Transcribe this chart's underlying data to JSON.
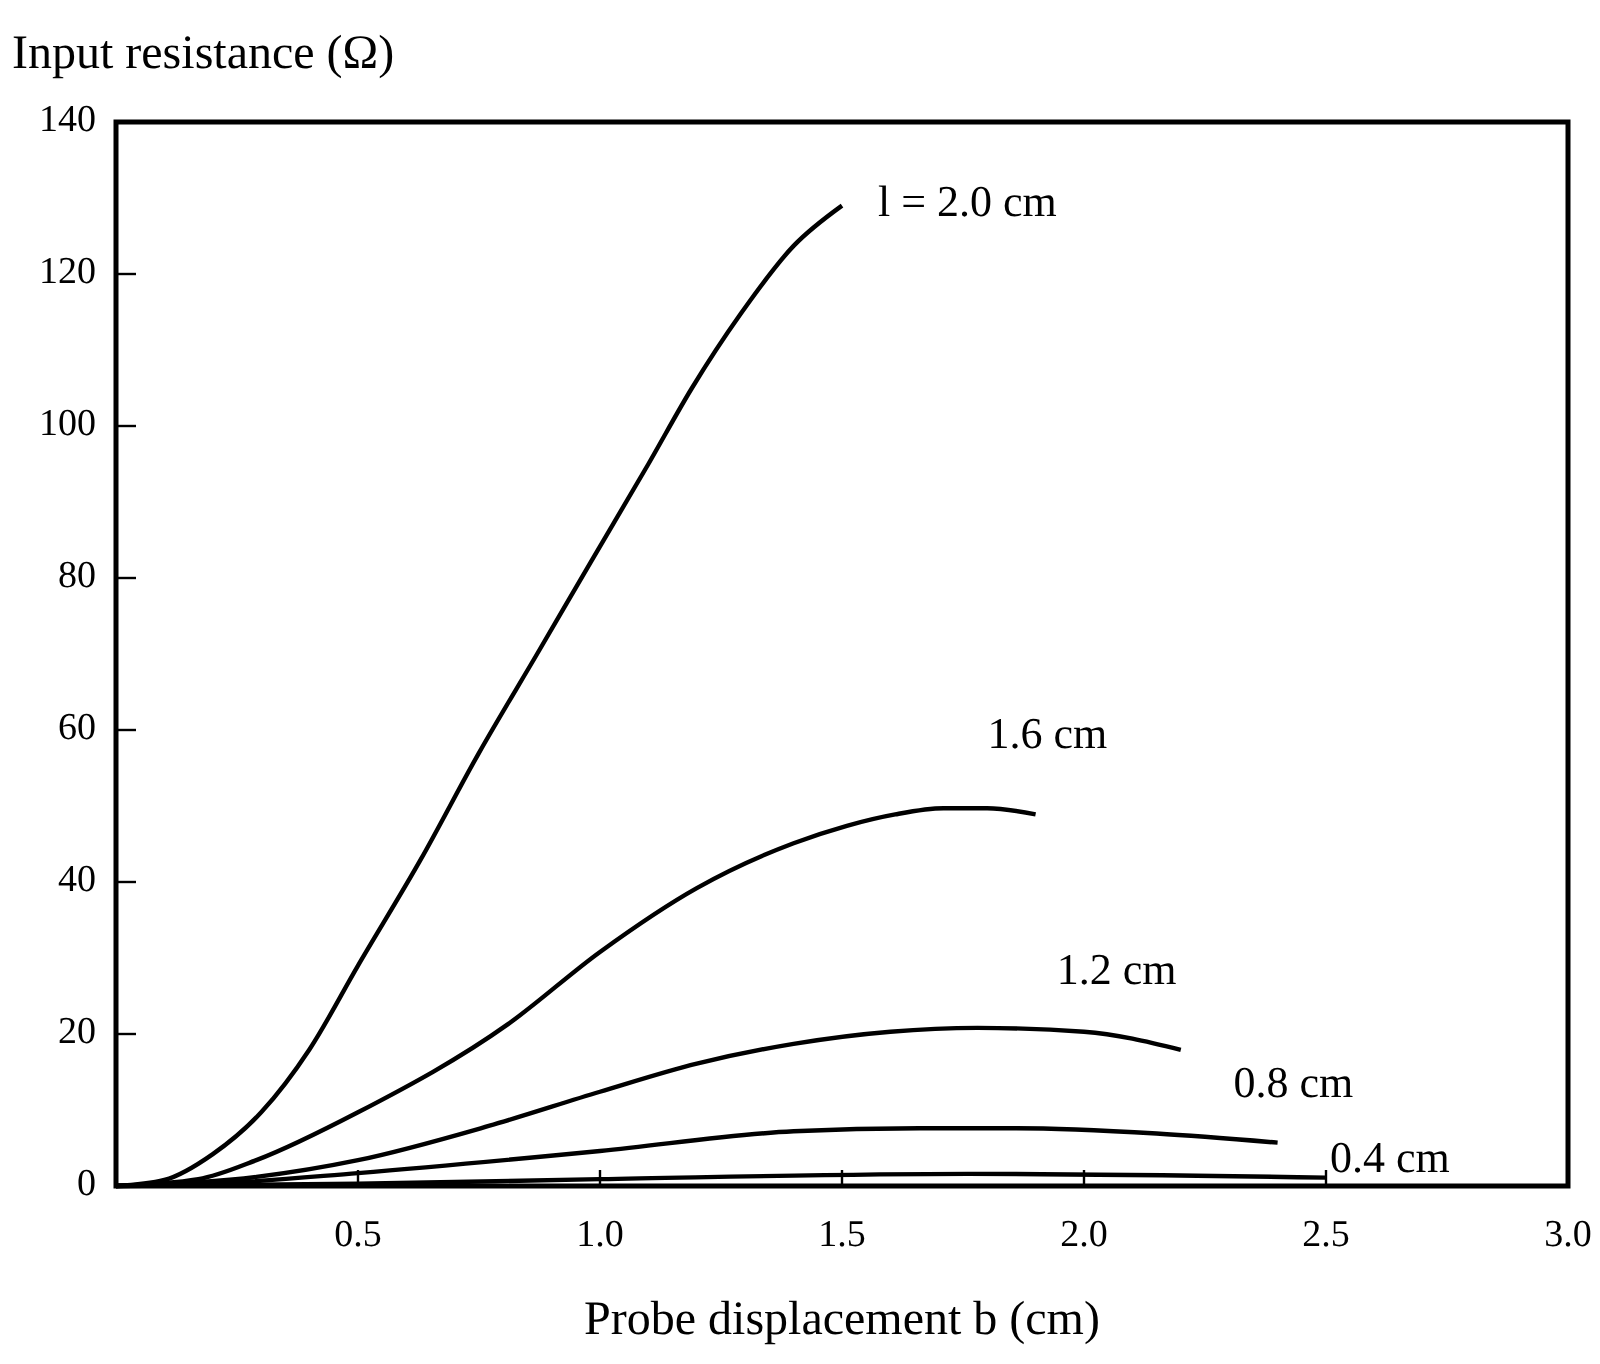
{
  "chart_data": {
    "type": "line",
    "ylabel": "Input resistance (Ω)",
    "xlabel": "Probe displacement b (cm)",
    "xlim": [
      0,
      3.0
    ],
    "xticks": [
      0.5,
      {
        "value": 1,
        "label": "1.0"
      },
      1.5,
      {
        "value": 2,
        "label": "2.0"
      },
      2.5,
      {
        "value": 3,
        "label": "3.0"
      }
    ],
    "ylim": [
      0,
      140
    ],
    "yticks": [
      0,
      20,
      40,
      60,
      80,
      100,
      120,
      140
    ],
    "grid": false,
    "marker": "none",
    "line_style": "solid",
    "series": [
      {
        "name": "l = 2.0 cm",
        "color": "#000000",
        "x": [
          0,
          0.1,
          0.2,
          0.3,
          0.4,
          0.5,
          0.63,
          0.75,
          0.87,
          0.98,
          1.1,
          1.19,
          1.29,
          1.4,
          1.5
        ],
        "values": [
          0,
          0.8,
          4.2,
          9.7,
          18,
          29,
          43,
          57,
          70,
          82,
          95,
          105,
          114.7,
          123.7,
          129
        ]
      },
      {
        "name": "1.6 cm",
        "color": "#000000",
        "x": [
          0,
          0.17,
          0.29,
          0.5,
          0.81,
          1.0,
          1.2,
          1.4,
          1.51,
          1.61,
          1.71,
          1.8,
          1.9
        ],
        "values": [
          0,
          0.9,
          3.4,
          9.7,
          21.3,
          30.8,
          39.2,
          45.1,
          47.4,
          48.9,
          49.7,
          49.7,
          48.9
        ]
      },
      {
        "name": "1.2 cm",
        "color": "#000000",
        "x": [
          0,
          0.29,
          0.5,
          0.77,
          1.0,
          1.2,
          1.4,
          1.6,
          1.78,
          2.0,
          2.2
        ],
        "values": [
          0,
          1.2,
          3.4,
          7.9,
          12.4,
          16.1,
          18.7,
          20.3,
          20.8,
          20.3,
          17.9
        ]
      },
      {
        "name": "0.8 cm",
        "color": "#000000",
        "x": [
          0,
          0.2,
          0.5,
          1.0,
          1.4,
          1.66,
          1.86,
          2.15,
          2.4
        ],
        "values": [
          0,
          0.3,
          1.7,
          4.6,
          7.2,
          7.6,
          7.6,
          6.9,
          5.7
        ]
      },
      {
        "name": "0.4 cm",
        "color": "#000000",
        "x": [
          0,
          0.5,
          1.0,
          1.76,
          2.5
        ],
        "values": [
          0,
          0.3,
          0.9,
          1.6,
          1.1
        ]
      }
    ]
  }
}
